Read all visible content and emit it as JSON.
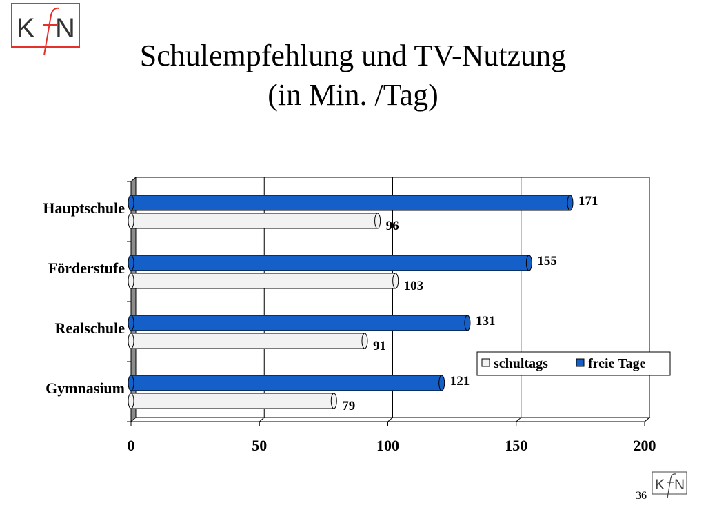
{
  "slide": {
    "title_line1": "Schulempfehlung und TV-Nutzung",
    "title_line2": "(in Min. /Tag)",
    "logo_text": "KfN",
    "slide_number": "36"
  },
  "colors": {
    "logo_red": "#e4312b",
    "logo_black": "#333333",
    "series_freie": "#1560c8",
    "series_schultags": "#f2f2f2"
  },
  "chart_data": {
    "type": "bar",
    "orientation": "horizontal",
    "style": "3d-cylinder",
    "title": "Schulempfehlung und TV-Nutzung (in Min. /Tag)",
    "categories": [
      "Hauptschule",
      "Förderstufe",
      "Realschule",
      "Gymnasium"
    ],
    "series": [
      {
        "name": "freie Tage",
        "values": [
          171,
          155,
          131,
          121
        ]
      },
      {
        "name": "schultags",
        "values": [
          96,
          103,
          91,
          79
        ]
      }
    ],
    "legend_order": [
      "schultags",
      "freie Tage"
    ],
    "legend_position": "lower-right inside",
    "xticks": [
      "0",
      "50",
      "100",
      "150",
      "200"
    ],
    "xlim": [
      0,
      200
    ],
    "gridlines": true,
    "xlabel": "",
    "ylabel": ""
  }
}
